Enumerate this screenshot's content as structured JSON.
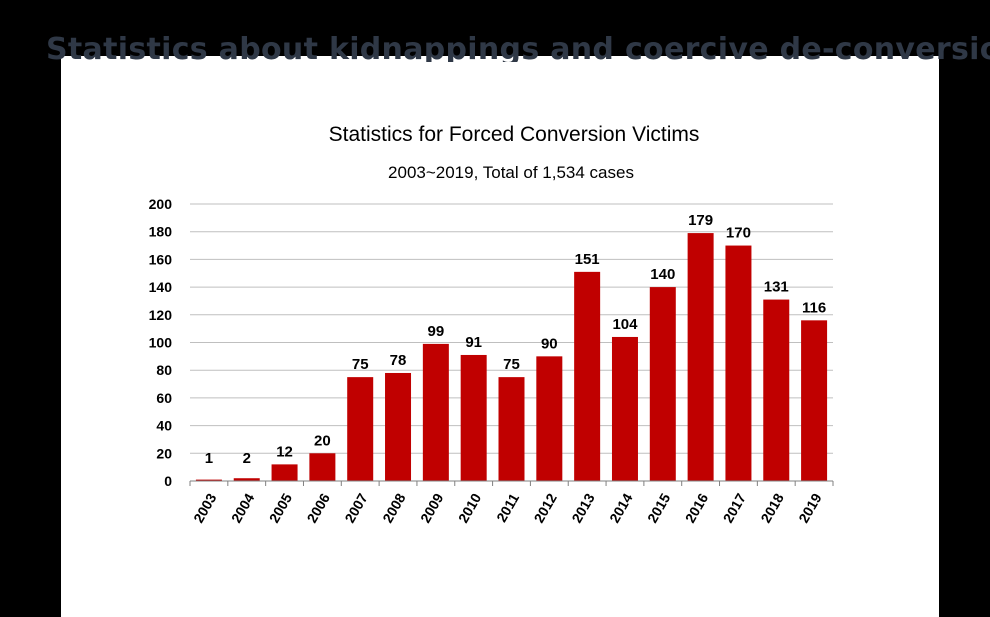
{
  "slide": {
    "title": "Statistics about kidnappings and coercive de-conversion"
  },
  "colors": {
    "bar": "#c00000",
    "grid": "#bfbfbf",
    "background": "#ffffff",
    "outer": "#000000"
  },
  "chart_data": {
    "type": "bar",
    "title": "Statistics for Forced Conversion Victims",
    "subtitle": "2003~2019, Total of 1,534 cases",
    "categories": [
      "2003",
      "2004",
      "2005",
      "2006",
      "2007",
      "2008",
      "2009",
      "2010",
      "2011",
      "2012",
      "2013",
      "2014",
      "2015",
      "2016",
      "2017",
      "2018",
      "2019"
    ],
    "values": [
      1,
      2,
      12,
      20,
      75,
      78,
      99,
      91,
      75,
      90,
      151,
      104,
      140,
      179,
      170,
      131,
      116
    ],
    "ylim": [
      0,
      200
    ],
    "yticks": [
      0,
      20,
      40,
      60,
      80,
      100,
      120,
      140,
      160,
      180,
      200
    ],
    "grid": true,
    "data_labels": true
  }
}
